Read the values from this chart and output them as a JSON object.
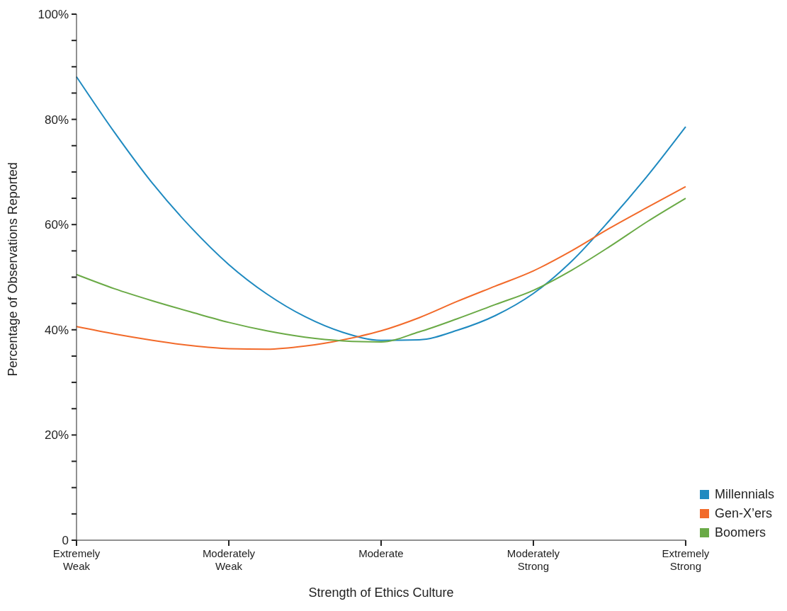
{
  "chart_data": {
    "type": "line",
    "xlabel": "Strength of Ethics Culture",
    "ylabel": "Percentage of Observations Reported",
    "categories": [
      "Extremely Weak",
      null,
      null,
      null,
      "Moderately Weak",
      null,
      null,
      null,
      "Moderate",
      null,
      null,
      null,
      "Moderately Strong",
      null,
      null,
      null,
      "Extremely Strong"
    ],
    "series": [
      {
        "name": "Millennials",
        "color": "#1f8ac0",
        "values": [
          88.1,
          77.5,
          67.8,
          59.5,
          52.4,
          46.8,
          42.5,
          39.5,
          38.0,
          38.1,
          39.9,
          42.7,
          46.9,
          53.0,
          60.8,
          69.3,
          78.6
        ]
      },
      {
        "name": "Gen-X’ers",
        "color": "#f26a2a",
        "values": [
          40.6,
          39.2,
          38.0,
          37.0,
          36.4,
          36.3,
          36.9,
          38.1,
          39.8,
          42.3,
          45.4,
          48.3,
          51.2,
          55.0,
          59.3,
          63.3,
          67.2
        ]
      },
      {
        "name": "Boomers",
        "color": "#6aaa46",
        "values": [
          50.5,
          47.8,
          45.5,
          43.4,
          41.4,
          39.8,
          38.6,
          37.9,
          37.7,
          39.6,
          42.1,
          44.8,
          47.5,
          51.3,
          55.8,
          60.6,
          65.0
        ]
      }
    ],
    "ylim": [
      0,
      100
    ],
    "yticks": [
      {
        "value": 0,
        "label": "0"
      },
      {
        "value": 5,
        "label": null
      },
      {
        "value": 10,
        "label": null
      },
      {
        "value": 15,
        "label": null
      },
      {
        "value": 20,
        "label": "20%"
      },
      {
        "value": 25,
        "label": null
      },
      {
        "value": 30,
        "label": null
      },
      {
        "value": 35,
        "label": null
      },
      {
        "value": 40,
        "label": "40%"
      },
      {
        "value": 45,
        "label": null
      },
      {
        "value": 50,
        "label": null
      },
      {
        "value": 55,
        "label": null
      },
      {
        "value": 60,
        "label": "60%"
      },
      {
        "value": 65,
        "label": null
      },
      {
        "value": 70,
        "label": null
      },
      {
        "value": 75,
        "label": null
      },
      {
        "value": 80,
        "label": "80%"
      },
      {
        "value": 85,
        "label": null
      },
      {
        "value": 90,
        "label": null
      },
      {
        "value": 95,
        "label": null
      },
      {
        "value": 100,
        "label": "100%"
      }
    ],
    "grid": false,
    "legend": "bottom right",
    "marker": "none",
    "line_style": "solid"
  }
}
